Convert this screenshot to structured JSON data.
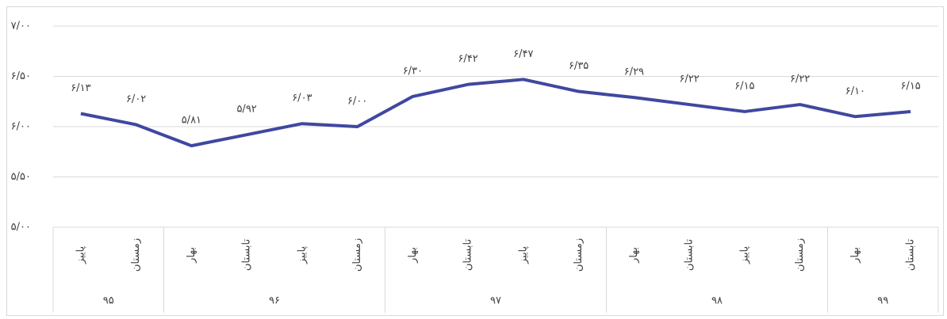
{
  "chart_data": {
    "type": "line",
    "categories": [
      "پاییز",
      "زمستان",
      "بهار",
      "تابستان",
      "پاییز",
      "زمستان",
      "بهار",
      "تابستان",
      "پاییز",
      "زمستان",
      "بهار",
      "تابستان",
      "پاییز",
      "زمستان",
      "بهار",
      "تابستان"
    ],
    "groups": [
      {
        "name": "۹۵",
        "count": 2
      },
      {
        "name": "۹۶",
        "count": 4
      },
      {
        "name": "۹۷",
        "count": 4
      },
      {
        "name": "۹۸",
        "count": 4
      },
      {
        "name": "۹۹",
        "count": 2
      }
    ],
    "values": [
      6.13,
      6.02,
      5.81,
      5.92,
      6.03,
      6.0,
      6.3,
      6.42,
      6.47,
      6.35,
      6.29,
      6.22,
      6.15,
      6.22,
      6.1,
      6.15
    ],
    "value_labels": [
      "۶/۱۳",
      "۶/۰۲",
      "۵/۸۱",
      "۵/۹۲",
      "۶/۰۳",
      "۶/۰۰",
      "۶/۳۰",
      "۶/۴۲",
      "۶/۴۷",
      "۶/۳۵",
      "۶/۲۹",
      "۶/۲۲",
      "۶/۱۵",
      "۶/۲۲",
      "۶/۱۰",
      "۶/۱۵"
    ],
    "color": "#3f48a0",
    "ylim": [
      5,
      7
    ],
    "yticks": [
      {
        "value": 5,
        "label": "۵/۰۰"
      },
      {
        "value": 5.5,
        "label": "۵/۵۰"
      },
      {
        "value": 6,
        "label": "۶/۰۰"
      },
      {
        "value": 6.5,
        "label": "۶/۵۰"
      },
      {
        "value": 7,
        "label": "۷/۰۰"
      }
    ],
    "grid": true
  }
}
